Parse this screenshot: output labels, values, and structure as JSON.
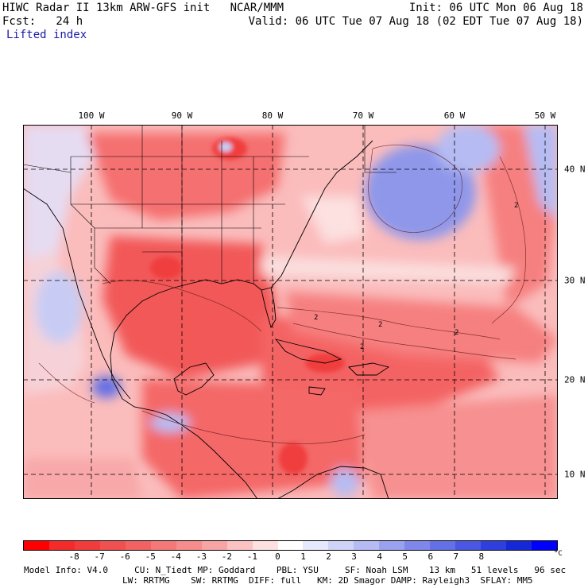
{
  "header": {
    "line1_left": "HIWC Radar II 13km ARW-GFS init   NCAR/MMM",
    "line1_right": "Init: 06 UTC Mon 06 Aug 18",
    "line2_left": "Fcst:   24 h",
    "line2_right": "Valid: 06 UTC Tue 07 Aug 18 (02 EDT Tue 07 Aug 18)",
    "field_name": "Lifted index"
  },
  "map": {
    "lon_labels": [
      "100 W",
      "90 W",
      "80 W",
      "70 W",
      "60 W",
      "50 W"
    ],
    "lat_labels": [
      "40 N",
      "30 N",
      "20 N",
      "10 N"
    ],
    "contour_labels": [
      "2",
      "2",
      "2",
      "2",
      "2"
    ],
    "colors": {
      "neg_strong": "#f03a3a",
      "neg_mid": "#f57070",
      "neg_light": "#fbbcbc",
      "neutral": "#ffffff",
      "pos_light": "#c8ccf4",
      "pos_mid": "#8f97ea",
      "pos_strong": "#2a37e0"
    }
  },
  "colorbar": {
    "colors": [
      "#ff0000",
      "#f52a2a",
      "#f03c3c",
      "#f05050",
      "#f26262",
      "#f47878",
      "#f68c8c",
      "#f8a4a4",
      "#fac2c2",
      "#fde0e0",
      "#ffffff",
      "#e6e8fb",
      "#cfd3f7",
      "#b6bcf3",
      "#9aa2ef",
      "#7f88ea",
      "#6470e5",
      "#4a57e2",
      "#2f3ede",
      "#1528d8",
      "#0000ff"
    ],
    "labels": [
      "-8",
      "-7",
      "-6",
      "-5",
      "-4",
      "-3",
      "-2",
      "-1",
      "0",
      "1",
      "2",
      "3",
      "4",
      "5",
      "6",
      "7",
      "8"
    ],
    "unit": "°C"
  },
  "footer": {
    "line1": "Model Info: V4.0     CU: N_Tiedt MP: Goddard    PBL: YSU     SF: Noah LSM    13 km   51 levels   96 sec",
    "line2": "LW: RRTMG    SW: RRTMG  DIFF: full   KM: 2D Smagor DAMP: Rayleigh3  SFLAY: MM5"
  }
}
